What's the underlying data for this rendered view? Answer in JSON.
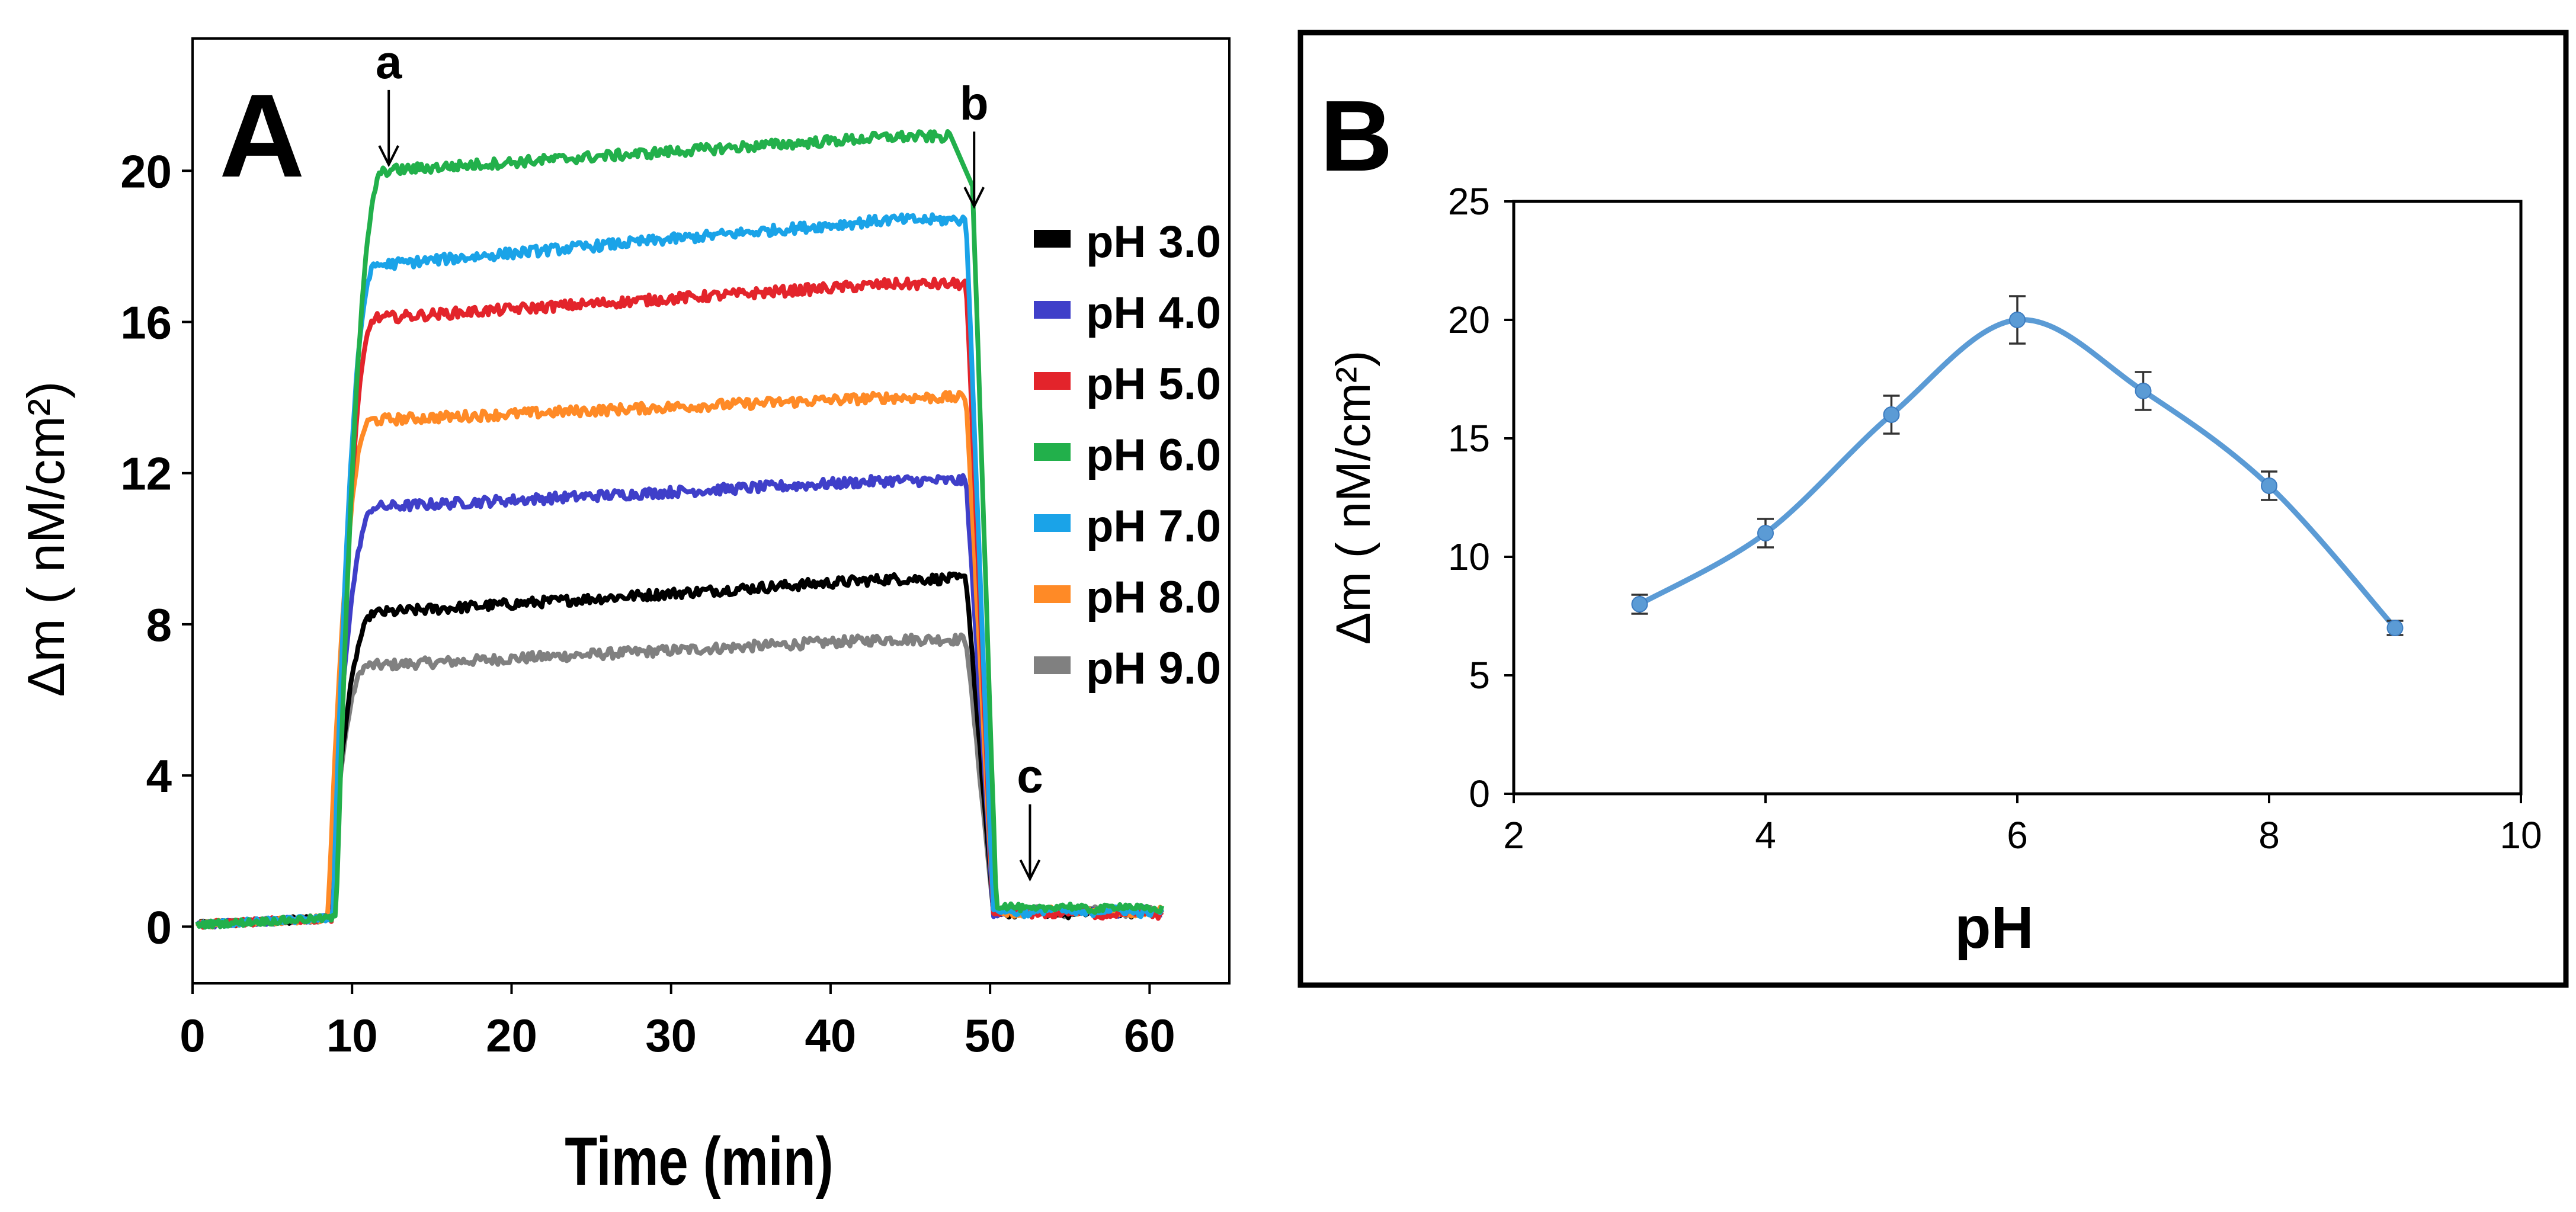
{
  "chart_data": [
    {
      "panel_label": "A",
      "type": "line",
      "title": "",
      "xlabel": "Time (min)",
      "ylabel": "Δm ( nM/cm²)",
      "xlim": [
        0,
        65
      ],
      "ylim": [
        -1.5,
        23.5
      ],
      "x_ticks": [
        "0",
        "10",
        "20",
        "30",
        "40",
        "50",
        "60"
      ],
      "x_tick_values": [
        0,
        10,
        20,
        30,
        40,
        50,
        60
      ],
      "y_ticks": [
        "0",
        "4",
        "8",
        "12",
        "16",
        "20"
      ],
      "y_tick_values": [
        0,
        4,
        8,
        12,
        16,
        20
      ],
      "grid": false,
      "legend_position": "right",
      "annotations": [
        {
          "label": "a",
          "x": 12.3,
          "y": 20.1
        },
        {
          "label": "b",
          "x": 49.0,
          "y": 19.0
        },
        {
          "label": "c",
          "x": 52.5,
          "y": 1.2
        }
      ],
      "series": [
        {
          "name": "pH 3.0",
          "color": "#000000",
          "plateau_start": 8.3,
          "plateau_end": 9.2,
          "final": 0.35,
          "rise": [
            8.5,
            11.5
          ],
          "fall": [
            48.5,
            50.2
          ],
          "end_x": 48.8
        },
        {
          "name": "pH 4.0",
          "color": "#3f3fc9",
          "plateau_start": 11.1,
          "plateau_end": 11.8,
          "final": 0.4,
          "rise": [
            8.5,
            11.5
          ],
          "fall": [
            48.5,
            50.2
          ],
          "end_x": 48.8
        },
        {
          "name": "pH 5.0",
          "color": "#e3242b",
          "plateau_start": 16.1,
          "plateau_end": 17.0,
          "final": 0.35,
          "rise": [
            8.8,
            11.5
          ],
          "fall": [
            48.5,
            50.2
          ],
          "end_x": 48.8
        },
        {
          "name": "pH 6.0",
          "color": "#22b04b",
          "plateau_start": 20.0,
          "plateau_end": 20.9,
          "final": 0.5,
          "rise": [
            9.0,
            12.0
          ],
          "fall": [
            48.8,
            50.4
          ],
          "end_x": 47.5
        },
        {
          "name": "pH 7.0",
          "color": "#1aa3e8",
          "plateau_start": 17.5,
          "plateau_end": 18.7,
          "final": 0.4,
          "rise": [
            8.8,
            11.5
          ],
          "fall": [
            48.5,
            50.2
          ],
          "end_x": 48.8
        },
        {
          "name": "pH 8.0",
          "color": "#ff8a26",
          "plateau_start": 13.4,
          "plateau_end": 14.0,
          "final": 0.4,
          "rise": [
            8.5,
            11.2
          ],
          "fall": [
            48.5,
            50.2
          ],
          "end_x": 48.8
        },
        {
          "name": "pH 9.0",
          "color": "#808080",
          "plateau_start": 6.9,
          "plateau_end": 7.6,
          "final": 0.4,
          "rise": [
            8.5,
            11.0
          ],
          "fall": [
            48.5,
            50.2
          ],
          "end_x": 48.8
        }
      ]
    },
    {
      "panel_label": "B",
      "type": "line",
      "title": "",
      "xlabel": "pH",
      "ylabel": "Δm ( nM/cm²)",
      "xlim": [
        2,
        10
      ],
      "ylim": [
        0,
        25
      ],
      "x_ticks": [
        "2",
        "4",
        "6",
        "8",
        "10"
      ],
      "x_tick_values": [
        2,
        4,
        6,
        8,
        10
      ],
      "y_ticks": [
        "0",
        "5",
        "10",
        "15",
        "20",
        "25"
      ],
      "y_tick_values": [
        0,
        5,
        10,
        15,
        20,
        25
      ],
      "grid": false,
      "series": [
        {
          "name": "Δm",
          "color": "#5b9bd5",
          "x": [
            3,
            4,
            5,
            6,
            7,
            8,
            9
          ],
          "y": [
            8,
            11,
            16,
            20,
            17,
            13,
            7
          ],
          "error": [
            0.4,
            0.6,
            0.8,
            1.0,
            0.8,
            0.6,
            0.3
          ]
        }
      ]
    }
  ]
}
